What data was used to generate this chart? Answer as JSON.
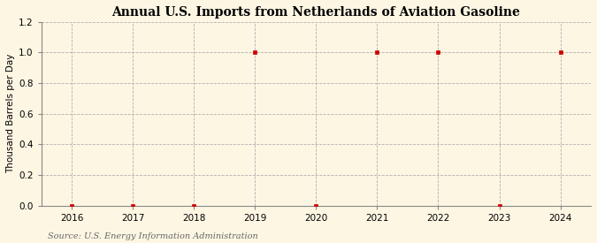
{
  "title": "Annual U.S. Imports from Netherlands of Aviation Gasoline",
  "ylabel": "Thousand Barrels per Day",
  "source": "Source: U.S. Energy Information Administration",
  "years": [
    2016,
    2017,
    2018,
    2019,
    2020,
    2021,
    2022,
    2023,
    2024
  ],
  "values": [
    0.0,
    0.0,
    0.0,
    1.0,
    0.0,
    1.0,
    1.0,
    0.0,
    1.0
  ],
  "xlim": [
    2015.5,
    2024.5
  ],
  "ylim": [
    0.0,
    1.2
  ],
  "yticks": [
    0.0,
    0.2,
    0.4,
    0.6,
    0.8,
    1.0,
    1.2
  ],
  "xticks": [
    2016,
    2017,
    2018,
    2019,
    2020,
    2021,
    2022,
    2023,
    2024
  ],
  "marker_color": "#cc0000",
  "marker": "s",
  "marker_size": 3,
  "grid_color": "#b0b0b0",
  "background_color": "#fdf6e3",
  "title_fontsize": 10,
  "label_fontsize": 7.5,
  "tick_fontsize": 7.5,
  "source_fontsize": 7
}
